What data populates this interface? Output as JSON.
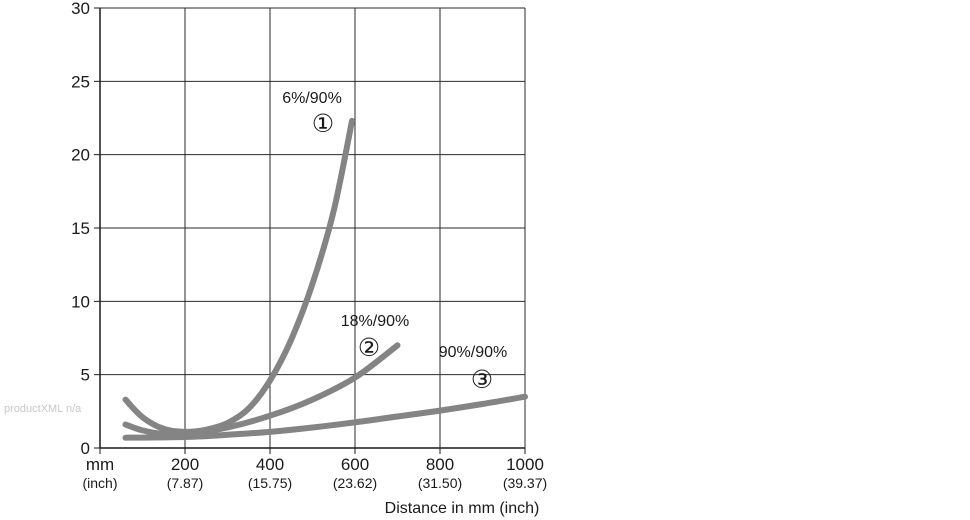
{
  "chart_data": {
    "type": "line",
    "xlabel": "Distance in mm (inch)",
    "ylabel": "",
    "xlim": [
      0,
      1000
    ],
    "ylim": [
      0,
      30
    ],
    "grid": true,
    "x_ticks": [
      {
        "value": 0,
        "main": "mm",
        "sub": "(inch)"
      },
      {
        "value": 200,
        "main": "200",
        "sub": "(7.87)"
      },
      {
        "value": 400,
        "main": "400",
        "sub": "(15.75)"
      },
      {
        "value": 600,
        "main": "600",
        "sub": "(23.62)"
      },
      {
        "value": 800,
        "main": "800",
        "sub": "(31.50)"
      },
      {
        "value": 1000,
        "main": "1000",
        "sub": "(39.37)"
      }
    ],
    "y_ticks": [
      0,
      5,
      10,
      15,
      20,
      25,
      30
    ],
    "series": [
      {
        "label": "6%/90%",
        "marker": "①",
        "color": "#848484",
        "x": [
          60,
          100,
          150,
          200,
          250,
          300,
          350,
          400,
          450,
          500,
          550,
          593
        ],
        "y": [
          3.3,
          2.1,
          1.3,
          1.1,
          1.25,
          1.7,
          2.7,
          4.6,
          7.4,
          11.2,
          16.2,
          22.3
        ]
      },
      {
        "label": "18%/90%",
        "marker": "②",
        "color": "#848484",
        "x": [
          60,
          100,
          150,
          200,
          300,
          400,
          500,
          600,
          700
        ],
        "y": [
          1.6,
          1.2,
          0.95,
          0.9,
          1.4,
          2.2,
          3.3,
          4.8,
          7.0
        ]
      },
      {
        "label": "90%/90%",
        "marker": "③",
        "color": "#848484",
        "x": [
          60,
          200,
          300,
          400,
          500,
          600,
          700,
          800,
          900,
          1000
        ],
        "y": [
          0.7,
          0.75,
          0.9,
          1.1,
          1.4,
          1.75,
          2.15,
          2.55,
          3.0,
          3.5
        ]
      }
    ]
  },
  "watermark": "productXML n/a"
}
